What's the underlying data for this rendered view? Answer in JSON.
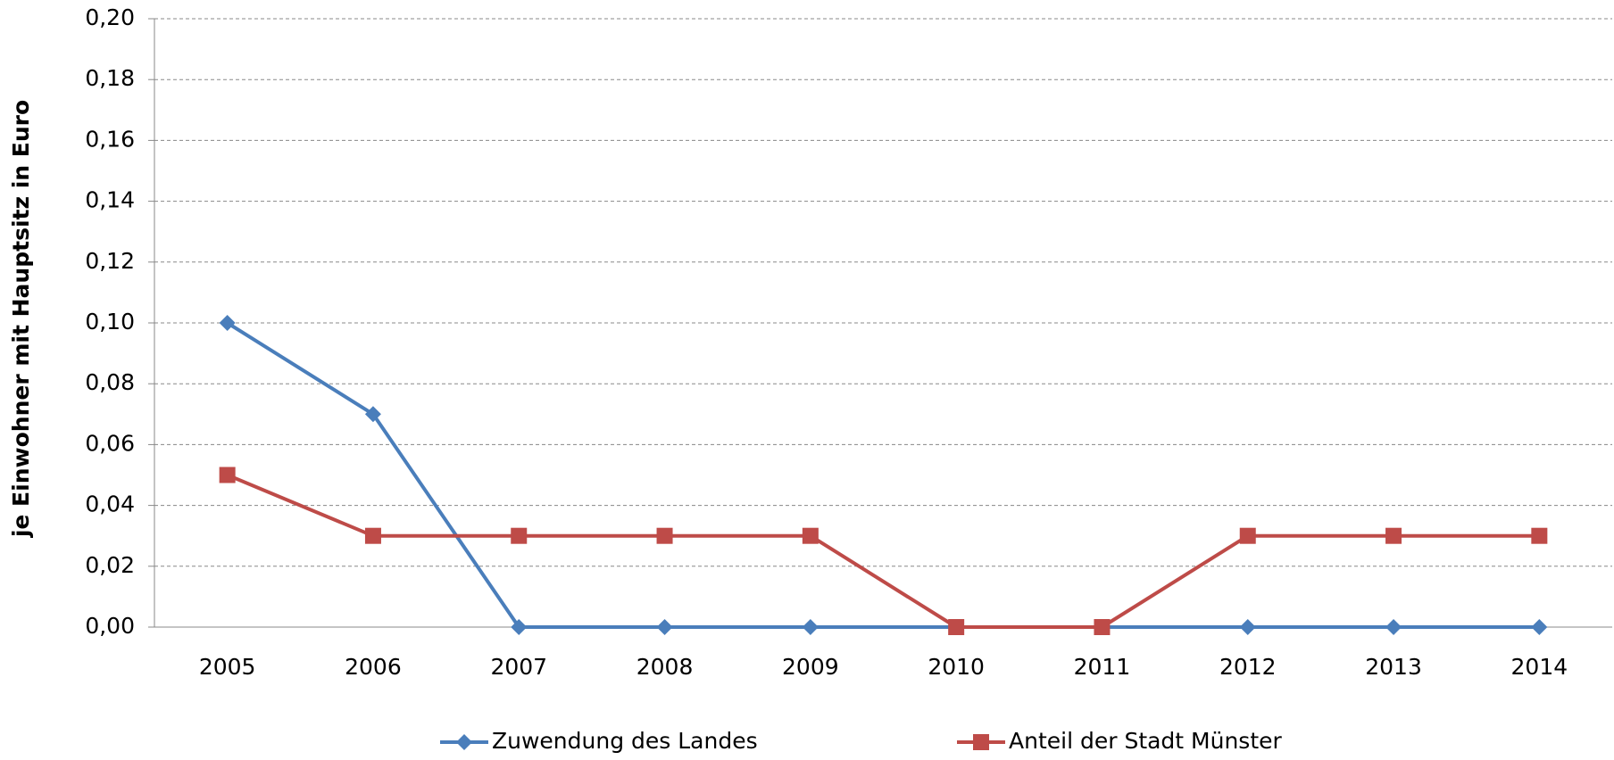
{
  "chart_data": {
    "type": "line",
    "y_label": "je Einwohner mit Hauptsitz in Euro",
    "categories": [
      "2005",
      "2006",
      "2007",
      "2008",
      "2009",
      "2010",
      "2011",
      "2012",
      "2013",
      "2014"
    ],
    "series": [
      {
        "name": "Zuwendung des Landes",
        "color": "#4a7ebb",
        "marker": "diamond",
        "values": [
          0.1,
          0.07,
          0,
          0,
          0,
          0,
          0,
          0,
          0,
          0
        ]
      },
      {
        "name": "Anteil der Stadt Münster",
        "color": "#be4b48",
        "marker": "square",
        "values": [
          0.05,
          0.03,
          0.03,
          0.03,
          0.03,
          0,
          0,
          0.03,
          0.03,
          0.03
        ]
      }
    ],
    "ylim": [
      0,
      0.2
    ],
    "yticks": [
      {
        "value": 0,
        "label": "0,00"
      },
      {
        "value": 0.02,
        "label": "0,02"
      },
      {
        "value": 0.04,
        "label": "0,04"
      },
      {
        "value": 0.06,
        "label": "0,06"
      },
      {
        "value": 0.08,
        "label": "0,08"
      },
      {
        "value": 0.1,
        "label": "0,10"
      },
      {
        "value": 0.12,
        "label": "0,12"
      },
      {
        "value": 0.14,
        "label": "0,14"
      },
      {
        "value": 0.16,
        "label": "0,16"
      },
      {
        "value": 0.18,
        "label": "0,18"
      },
      {
        "value": 0.2,
        "label": "0,20"
      }
    ],
    "grid": true,
    "legend": "bottom"
  }
}
